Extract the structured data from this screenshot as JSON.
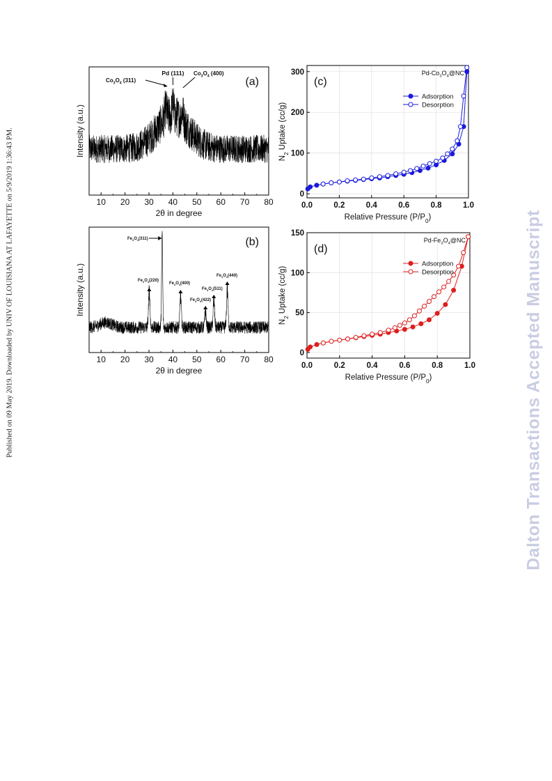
{
  "side_note": "Published on 09 May 2019. Downloaded by UNIV OF LOUISIANA AT LAFAYETTE on 5/9/2019 1:36:43 PM.",
  "watermark": "Dalton Transactions Accepted Manuscript",
  "colors": {
    "adsorption_c": "#1a1adb",
    "adsorption_d": "#dd1f1f",
    "pattern": "#000000"
  },
  "chart_data": [
    {
      "id": "a",
      "type": "line",
      "panel_label": "(a)",
      "xlabel": "2θ in degree",
      "ylabel": "Intensity (a.u.)",
      "xlim": [
        5,
        80
      ],
      "xticks": [
        10,
        20,
        30,
        40,
        50,
        60,
        70,
        80
      ],
      "x_tick_labels": [
        "10",
        "20",
        "30",
        "40",
        "50",
        "60",
        "70",
        "80"
      ],
      "y_ticks_visible": false,
      "annotations": [
        {
          "base": "Co",
          "sub1": "3",
          "mid": "O",
          "sub2": "4",
          "tail": " (311)",
          "x": 37
        },
        {
          "base": "Pd (111)",
          "x": 40
        },
        {
          "base": "Co",
          "sub1": "3",
          "mid": "O",
          "sub2": "4",
          "tail": " (400)",
          "x": 44
        }
      ]
    },
    {
      "id": "b",
      "type": "line",
      "panel_label": "(b)",
      "xlabel": "2θ in degree",
      "ylabel": "Intensity (a.u.)",
      "xlim": [
        5,
        80
      ],
      "xticks": [
        10,
        20,
        30,
        40,
        50,
        60,
        70,
        80
      ],
      "x_tick_labels": [
        "10",
        "20",
        "30",
        "40",
        "50",
        "60",
        "70",
        "80"
      ],
      "y_ticks_visible": false,
      "peaks": [
        {
          "x": 30.1,
          "label": "(220)"
        },
        {
          "x": 35.5,
          "label": "(311)"
        },
        {
          "x": 43.2,
          "label": "(400)"
        },
        {
          "x": 53.6,
          "label": "(422)"
        },
        {
          "x": 57.1,
          "label": "(511)"
        },
        {
          "x": 62.7,
          "label": "(440)"
        }
      ],
      "peak_label_prefix": {
        "base": "Fe",
        "sub1": "3",
        "mid": "O",
        "sub2": "4"
      }
    },
    {
      "id": "c",
      "type": "line",
      "panel_label": "(c)",
      "inset_title": {
        "pre": "Pd-Co",
        "sub1": "3",
        "mid": "O",
        "sub2": "4",
        "post": "@NC"
      },
      "xlabel": "Relative Pressure (P/P₀)",
      "ylabel": "N₂ Uptake (cc/g)",
      "xlim": [
        0,
        1.0
      ],
      "ylim": [
        -10,
        315
      ],
      "xticks": [
        0.0,
        0.2,
        0.4,
        0.6,
        0.8,
        1.0
      ],
      "x_tick_labels": [
        "0.0",
        "0.2",
        "0.4",
        "0.6",
        "0.8",
        "1.0"
      ],
      "yticks": [
        0,
        100,
        200,
        300
      ],
      "y_tick_labels": [
        "0",
        "100",
        "200",
        "300"
      ],
      "legend_position": "upper-center",
      "series": [
        {
          "name": "Adsorption",
          "marker": "filled",
          "x": [
            0.005,
            0.02,
            0.06,
            0.1,
            0.15,
            0.2,
            0.25,
            0.3,
            0.35,
            0.4,
            0.45,
            0.5,
            0.55,
            0.6,
            0.65,
            0.7,
            0.75,
            0.8,
            0.85,
            0.9,
            0.94,
            0.97,
            0.99
          ],
          "y": [
            12,
            17,
            21,
            24,
            27,
            29,
            31,
            33,
            35,
            37,
            39,
            42,
            45,
            48,
            52,
            57,
            63,
            71,
            82,
            98,
            122,
            165,
            300
          ]
        },
        {
          "name": "Desorption",
          "marker": "open",
          "x": [
            0.99,
            0.97,
            0.95,
            0.93,
            0.9,
            0.87,
            0.84,
            0.8,
            0.76,
            0.72,
            0.68,
            0.64,
            0.6,
            0.55,
            0.5,
            0.45,
            0.4,
            0.35,
            0.3,
            0.25,
            0.2,
            0.15,
            0.1
          ],
          "y": [
            310,
            240,
            165,
            130,
            110,
            98,
            88,
            80,
            74,
            68,
            62,
            57,
            53,
            49,
            45,
            42,
            39,
            36,
            34,
            32,
            29,
            27,
            24
          ]
        }
      ]
    },
    {
      "id": "d",
      "type": "line",
      "panel_label": "(d)",
      "inset_title": {
        "pre": "Pd-Fe",
        "sub1": "3",
        "mid": "O",
        "sub2": "4",
        "post": "@NC"
      },
      "xlabel": "Relative Pressure (P/P₀)",
      "ylabel": "N₂ Uptake (cc/g)",
      "xlim": [
        0,
        1.0
      ],
      "ylim": [
        -7,
        150
      ],
      "xticks": [
        0.0,
        0.2,
        0.4,
        0.6,
        0.8,
        1.0
      ],
      "x_tick_labels": [
        "0.0",
        "0.2",
        "0.4",
        "0.6",
        "0.8",
        "1.0"
      ],
      "yticks": [
        0,
        50,
        100,
        150
      ],
      "y_tick_labels": [
        "0",
        "50",
        "100",
        "150"
      ],
      "legend_position": "upper-center",
      "series": [
        {
          "name": "Adsorption",
          "marker": "filled",
          "x": [
            0.005,
            0.02,
            0.06,
            0.1,
            0.15,
            0.2,
            0.25,
            0.3,
            0.35,
            0.4,
            0.45,
            0.5,
            0.55,
            0.6,
            0.65,
            0.7,
            0.75,
            0.8,
            0.85,
            0.9,
            0.95,
            0.99
          ],
          "y": [
            4,
            7,
            10,
            12,
            14,
            15.5,
            17,
            18.5,
            20,
            21.5,
            23,
            25,
            27,
            29,
            32,
            36,
            41,
            49,
            60,
            78,
            108,
            145
          ]
        },
        {
          "name": "Desorption",
          "marker": "open",
          "x": [
            0.99,
            0.96,
            0.93,
            0.9,
            0.87,
            0.84,
            0.81,
            0.78,
            0.75,
            0.72,
            0.69,
            0.66,
            0.63,
            0.6,
            0.57,
            0.54,
            0.5,
            0.45,
            0.4,
            0.35,
            0.3,
            0.25,
            0.2,
            0.15,
            0.1
          ],
          "y": [
            145,
            125,
            108,
            97,
            89,
            82,
            76,
            70,
            64,
            58,
            52,
            46,
            41,
            37,
            34,
            31,
            28,
            25,
            23,
            21,
            19,
            17,
            15.5,
            14,
            12
          ]
        }
      ]
    }
  ]
}
